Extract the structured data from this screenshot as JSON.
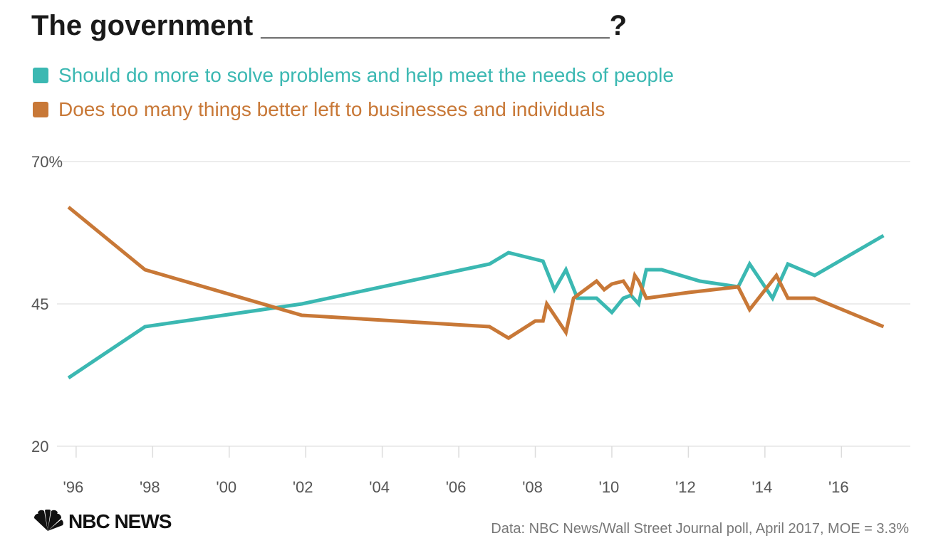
{
  "title": "The government ______________________?",
  "colors": {
    "more": "#3bb8b2",
    "less": "#c87837"
  },
  "legend": [
    {
      "label": "Should do more to solve problems and help meet the needs of people",
      "color": "#3bb8b2"
    },
    {
      "label": "Does too many things better left to businesses and individuals",
      "color": "#c87837"
    }
  ],
  "chart_data": {
    "type": "line",
    "title": "The government ______________________?",
    "xlabel": "",
    "ylabel": "",
    "xlim": [
      1995.5,
      2017.8
    ],
    "ylim": [
      20,
      70
    ],
    "yticks": [
      {
        "value": 70,
        "label": "70%"
      },
      {
        "value": 45,
        "label": "45"
      },
      {
        "value": 20,
        "label": "20"
      }
    ],
    "xticks": [
      {
        "value": 1996,
        "label": "'96"
      },
      {
        "value": 1998,
        "label": "'98"
      },
      {
        "value": 2000,
        "label": "'00"
      },
      {
        "value": 2002,
        "label": "'02"
      },
      {
        "value": 2004,
        "label": "'04"
      },
      {
        "value": 2006,
        "label": "'06"
      },
      {
        "value": 2008,
        "label": "'08"
      },
      {
        "value": 2010,
        "label": "'10"
      },
      {
        "value": 2012,
        "label": "'12"
      },
      {
        "value": 2014,
        "label": "'14"
      },
      {
        "value": 2016,
        "label": "'16"
      }
    ],
    "grid": true,
    "legend_position": "top",
    "series": [
      {
        "name": "Should do more to solve problems and help meet the needs of people",
        "color": "#3bb8b2",
        "x": [
          1995.8,
          1997.8,
          2001.9,
          2006.8,
          2007.3,
          2008.2,
          2008.5,
          2008.8,
          2009.1,
          2009.6,
          2010.0,
          2010.3,
          2010.5,
          2010.7,
          2010.9,
          2011.3,
          2012.3,
          2013.3,
          2013.6,
          2014.2,
          2014.6,
          2015.3,
          2017.1
        ],
        "y": [
          32,
          41,
          45,
          52,
          54,
          52.5,
          47.5,
          51,
          46,
          46,
          43.5,
          46,
          46.5,
          45,
          51,
          51,
          49,
          48,
          52,
          46,
          52,
          50,
          57
        ]
      },
      {
        "name": "Does too many things better left to businesses and individuals",
        "color": "#c87837",
        "x": [
          1995.8,
          1997.8,
          2001.9,
          2006.8,
          2007.3,
          2008.0,
          2008.2,
          2008.3,
          2008.8,
          2009.0,
          2009.6,
          2009.8,
          2010.0,
          2010.3,
          2010.5,
          2010.6,
          2010.7,
          2010.9,
          2012.0,
          2013.3,
          2013.6,
          2014.3,
          2014.6,
          2015.3,
          2017.1
        ],
        "y": [
          62,
          51,
          43,
          41,
          39,
          42,
          42,
          45,
          40,
          46,
          49,
          47.5,
          48.5,
          49,
          47,
          50,
          49,
          46,
          47,
          48,
          44,
          50,
          46,
          46,
          41
        ]
      }
    ]
  },
  "logo": {
    "text": "NBC NEWS"
  },
  "source": "Data: NBC News/Wall Street Journal poll, April 2017, MOE = 3.3%"
}
